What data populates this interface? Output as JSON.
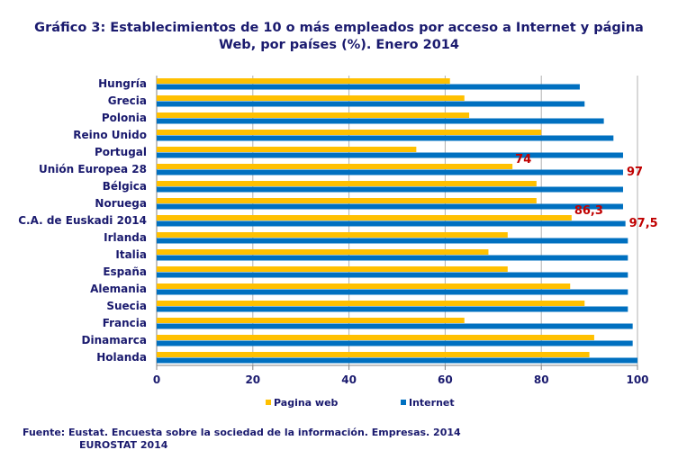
{
  "chart_data": {
    "type": "bar",
    "orientation": "horizontal",
    "title_line1": "Gráfico 3: Establecimientos de 10 o más empleados por acceso a Internet y página",
    "title_line2": "Web, por países (%). Enero 2014",
    "categories": [
      "Hungría",
      "Grecia",
      "Polonia",
      "Reino Unido",
      "Portugal",
      "Unión Europea 28",
      "Bélgica",
      "Noruega",
      "C.A. de Euskadi 2014",
      "Irlanda",
      "Italia",
      "España",
      "Alemania",
      "Suecia",
      "Francia",
      "Dinamarca",
      "Holanda"
    ],
    "series": [
      {
        "name": "Pagina web",
        "color": "#FFC000",
        "values": [
          61,
          64,
          65,
          80,
          54,
          74,
          79,
          79,
          86.3,
          73,
          69,
          73,
          86,
          89,
          64,
          91,
          90
        ]
      },
      {
        "name": "Internet",
        "color": "#0070C0",
        "values": [
          88,
          89,
          93,
          95,
          97,
          97,
          97,
          97,
          97.5,
          98,
          98,
          98,
          98,
          98,
          99,
          99,
          100
        ]
      }
    ],
    "data_labels": [
      {
        "category": "Unión Europea 28",
        "series": "Pagina web",
        "text": "74"
      },
      {
        "category": "Unión Europea 28",
        "series": "Internet",
        "text": "97"
      },
      {
        "category": "C.A. de Euskadi 2014",
        "series": "Pagina web",
        "text": "86,3"
      },
      {
        "category": "C.A. de Euskadi 2014",
        "series": "Internet",
        "text": "97,5"
      }
    ],
    "data_label_color": "#C00000",
    "xlim": [
      0,
      100
    ],
    "xticks": [
      "0",
      "20",
      "40",
      "60",
      "80",
      "100"
    ],
    "grid": true,
    "legend_position": "bottom"
  },
  "footer": {
    "line1": "Fuente: Eustat. Encuesta sobre la sociedad de la información. Empresas. 2014",
    "line2": "EUROSTAT 2014"
  }
}
